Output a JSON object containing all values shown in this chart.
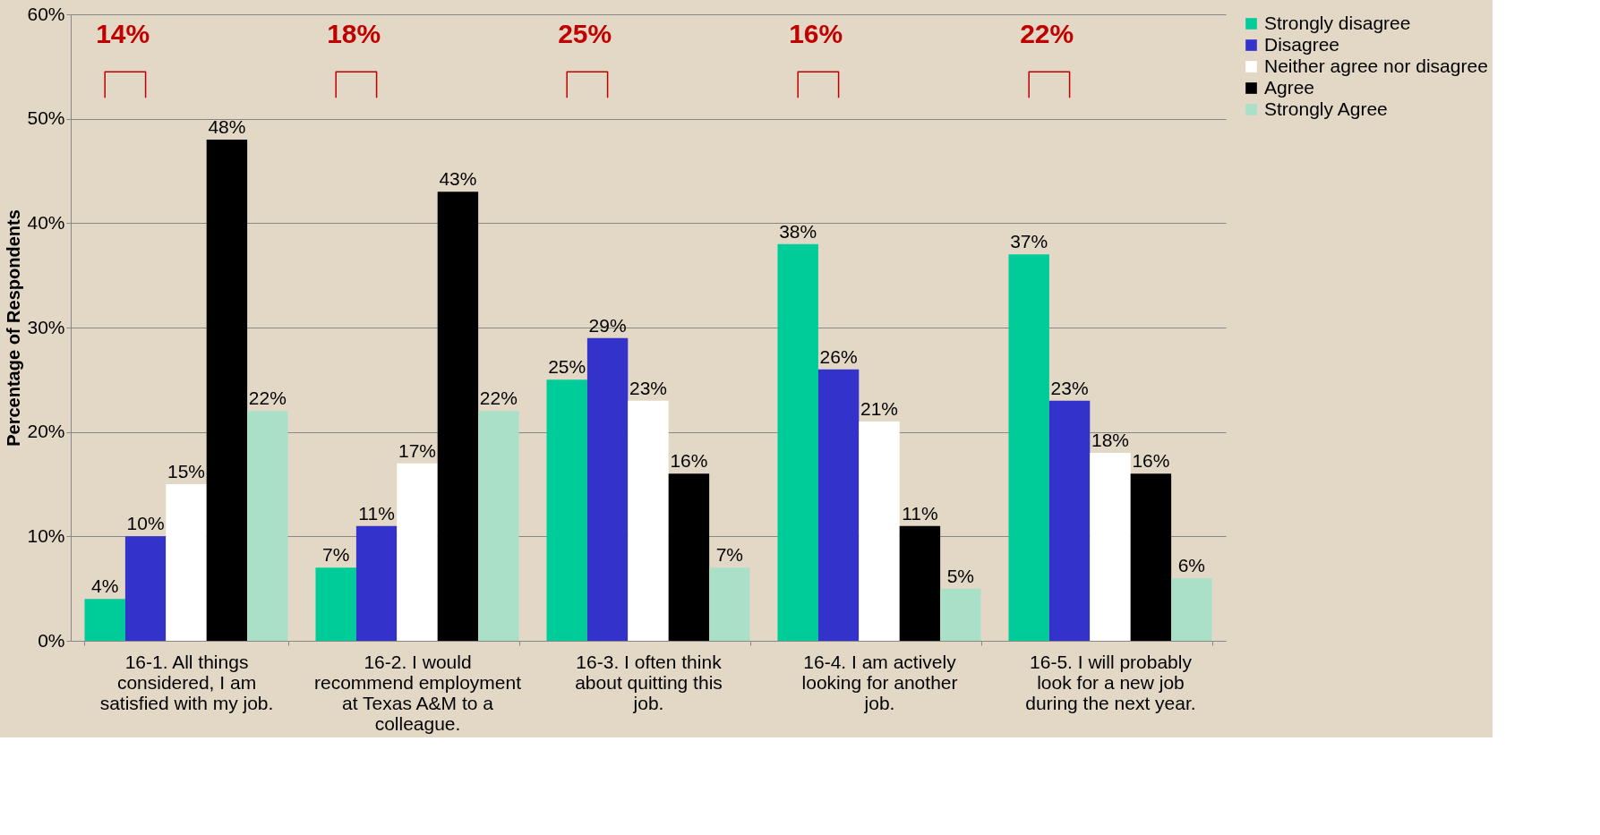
{
  "chart_data": {
    "type": "bar",
    "ylabel": "Percentage of Respondents",
    "categories": [
      "16-1. All things considered, I am satisfied with my job.",
      "16-2. I would recommend employment at Texas A&M to a colleague.",
      "16-3. I often think about quitting this job.",
      "16-4. I am actively looking for another job.",
      "16-5. I will probably look for a new job during the next year."
    ],
    "series": [
      {
        "name": "Strongly disagree",
        "color": "#00cc99",
        "values": [
          4,
          7,
          25,
          38,
          37
        ],
        "value_labels": [
          "4%",
          "7%",
          "25%",
          "38%",
          "37%"
        ]
      },
      {
        "name": "Disagree",
        "color": "#3333cc",
        "values": [
          10,
          11,
          29,
          26,
          23
        ],
        "value_labels": [
          "10%",
          "11%",
          "29%",
          "26%",
          "23%"
        ]
      },
      {
        "name": "Neither agree nor disagree",
        "color": "#ffffff",
        "values": [
          15,
          17,
          23,
          21,
          18
        ],
        "value_labels": [
          "15%",
          "17%",
          "23%",
          "21%",
          "18%"
        ]
      },
      {
        "name": "Agree",
        "color": "#000000",
        "values": [
          48,
          43,
          16,
          11,
          16
        ],
        "value_labels": [
          "48%",
          "43%",
          "16%",
          "11%",
          "16%"
        ]
      },
      {
        "name": "Strongly Agree",
        "color": "#aae0c8",
        "values": [
          22,
          22,
          7,
          5,
          6
        ],
        "value_labels": [
          "22%",
          "22%",
          "7%",
          "5%",
          "6%"
        ]
      }
    ],
    "ylim": [
      0,
      60
    ],
    "yticks": [
      {
        "value": 0,
        "label": "0%"
      },
      {
        "value": 10,
        "label": "10%"
      },
      {
        "value": 20,
        "label": "20%"
      },
      {
        "value": 30,
        "label": "30%"
      },
      {
        "value": 40,
        "label": "40%"
      },
      {
        "value": 50,
        "label": "50%"
      },
      {
        "value": 60,
        "label": "60%"
      }
    ],
    "grid": "y",
    "legend": "right",
    "annotations": [
      "14%",
      "18%",
      "25%",
      "16%",
      "22%"
    ]
  }
}
